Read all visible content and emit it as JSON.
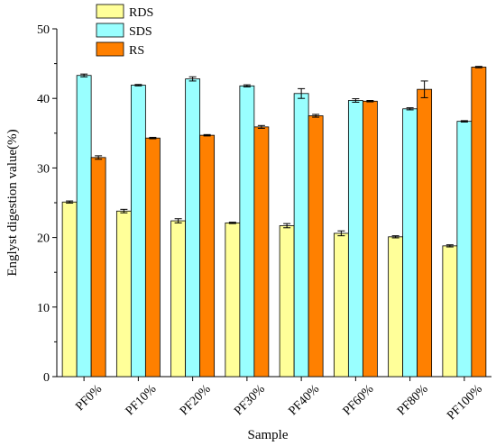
{
  "chart_data": {
    "type": "bar",
    "xlabel": "Sample",
    "ylabel": "Englyst digestion value(%)",
    "ylim": [
      0,
      50
    ],
    "yticks": [
      0,
      10,
      20,
      30,
      40,
      50
    ],
    "grid": false,
    "legend_position": "top-left",
    "categories": [
      "PF0%",
      "PF10%",
      "PF20%",
      "PF30%",
      "PF40%",
      "PF60%",
      "PF80%",
      "PF100%"
    ],
    "series": [
      {
        "name": "RDS",
        "color": "#FFFF99",
        "values": [
          25.1,
          23.8,
          22.4,
          22.1,
          21.7,
          20.6,
          20.1,
          18.8
        ],
        "errors": [
          0.15,
          0.25,
          0.3,
          0.1,
          0.3,
          0.35,
          0.15,
          0.15
        ]
      },
      {
        "name": "SDS",
        "color": "#99FFFF",
        "values": [
          43.3,
          41.9,
          42.8,
          41.8,
          40.7,
          39.7,
          38.5,
          36.7
        ],
        "errors": [
          0.2,
          0.1,
          0.3,
          0.15,
          0.7,
          0.25,
          0.15,
          0.1
        ]
      },
      {
        "name": "RS",
        "color": "#FF8000",
        "values": [
          31.5,
          34.3,
          34.7,
          35.9,
          37.5,
          39.6,
          41.3,
          44.5
        ],
        "errors": [
          0.25,
          0.1,
          0.1,
          0.2,
          0.2,
          0.1,
          1.2,
          0.1
        ]
      }
    ]
  }
}
